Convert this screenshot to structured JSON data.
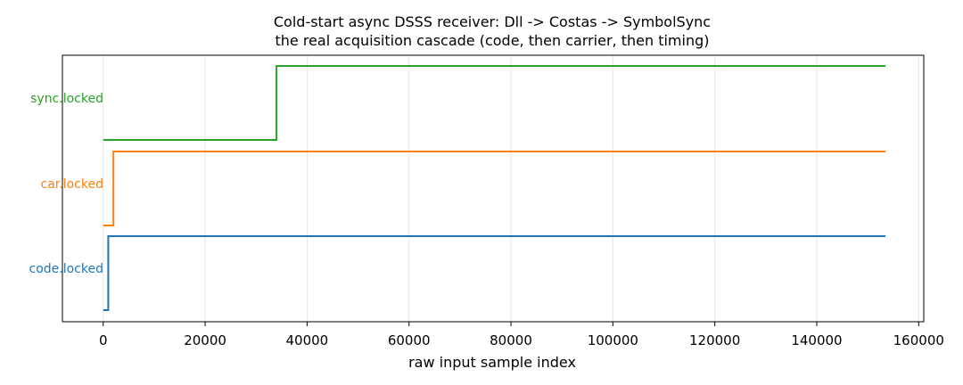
{
  "chart_data": {
    "type": "line",
    "title": "Cold-start async DSSS receiver: Dll -> Costas -> SymbolSync",
    "subtitle": "the real acquisition cascade (code, then carrier, then timing)",
    "xlabel": "raw input sample index",
    "ylabel": "",
    "xlim": [
      -8000,
      161000
    ],
    "ylim": [
      0,
      1
    ],
    "xticks": [
      0,
      20000,
      40000,
      60000,
      80000,
      100000,
      120000,
      140000,
      160000
    ],
    "x_tick_labels": [
      "0",
      "20000",
      "40000",
      "60000",
      "80000",
      "100000",
      "120000",
      "140000",
      "160000"
    ],
    "grid": "vertical",
    "legend": "none",
    "series": [
      {
        "name": "code.locked",
        "color": "#1f77b4",
        "x": [
          0,
          1000,
          1000,
          153500
        ],
        "y": [
          0,
          0,
          1,
          1
        ]
      },
      {
        "name": "car.locked",
        "color": "#ff7f0e",
        "x": [
          0,
          2000,
          2000,
          153500
        ],
        "y": [
          0,
          0,
          1,
          1
        ]
      },
      {
        "name": "sync.locked",
        "color": "#2ca02c",
        "x": [
          0,
          34000,
          34000,
          153500
        ],
        "y": [
          0,
          0,
          1,
          1
        ]
      }
    ]
  }
}
